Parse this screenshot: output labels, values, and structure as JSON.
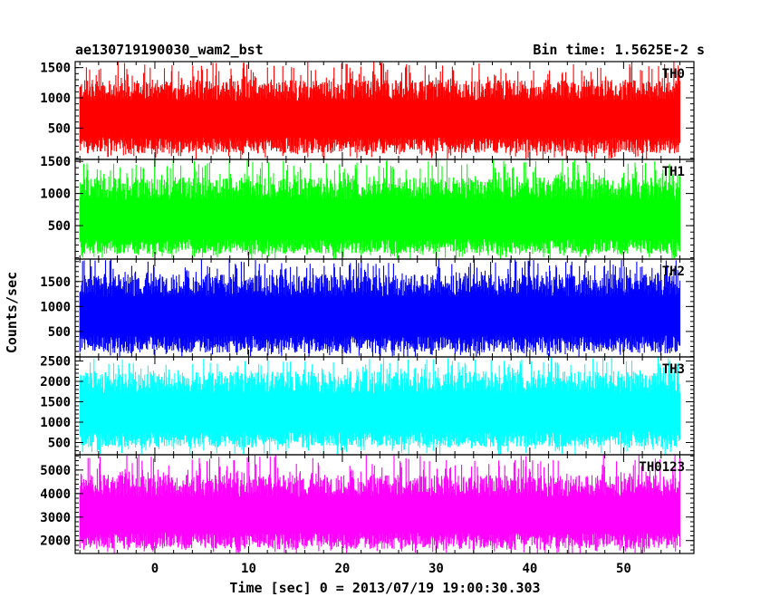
{
  "chart_data": {
    "type": "line",
    "title": "ae130719190030_wam2_bst",
    "bin_label": "Bin time: 1.5625E-2 s",
    "xlabel": "Time [sec] 0 = 2013/07/19 19:00:30.303",
    "ylabel": "Counts/sec",
    "xlim": [
      -8.5,
      57.5
    ],
    "data_x_range": [
      -8,
      56
    ],
    "xticks": [
      0,
      10,
      20,
      30,
      40,
      50
    ],
    "grid": false,
    "panels": [
      {
        "name": "TH0",
        "color": "#ff0000",
        "ylim": [
          -20,
          1600
        ],
        "yticks": [
          500,
          1000,
          1500
        ],
        "lower_band": [
          80,
          350
        ],
        "upper_band": [
          950,
          1300
        ],
        "peak_max": 1600,
        "trough_min": -20
      },
      {
        "name": "TH1",
        "color": "#00ff00",
        "ylim": [
          -20,
          1530
        ],
        "yticks": [
          500,
          1000,
          1500
        ],
        "lower_band": [
          60,
          300
        ],
        "upper_band": [
          900,
          1250
        ],
        "peak_max": 1530,
        "trough_min": -20
      },
      {
        "name": "TH2",
        "color": "#0000ff",
        "ylim": [
          -10,
          1950
        ],
        "yticks": [
          500,
          1000,
          1500
        ],
        "lower_band": [
          80,
          420
        ],
        "upper_band": [
          1200,
          1650
        ],
        "peak_max": 1950,
        "trough_min": -10
      },
      {
        "name": "TH3",
        "color": "#00ffff",
        "ylim": [
          200,
          2600
        ],
        "yticks": [
          500,
          1000,
          1500,
          2000,
          2500
        ],
        "lower_band": [
          380,
          780
        ],
        "upper_band": [
          1700,
          2250
        ],
        "peak_max": 2600,
        "trough_min": 200
      },
      {
        "name": "TH0123",
        "color": "#ff00ff",
        "ylim": [
          1450,
          5650
        ],
        "yticks": [
          2000,
          3000,
          4000,
          5000
        ],
        "lower_band": [
          1650,
          2350
        ],
        "upper_band": [
          3850,
          4800
        ],
        "peak_max": 5650,
        "trough_min": 1450
      }
    ]
  }
}
